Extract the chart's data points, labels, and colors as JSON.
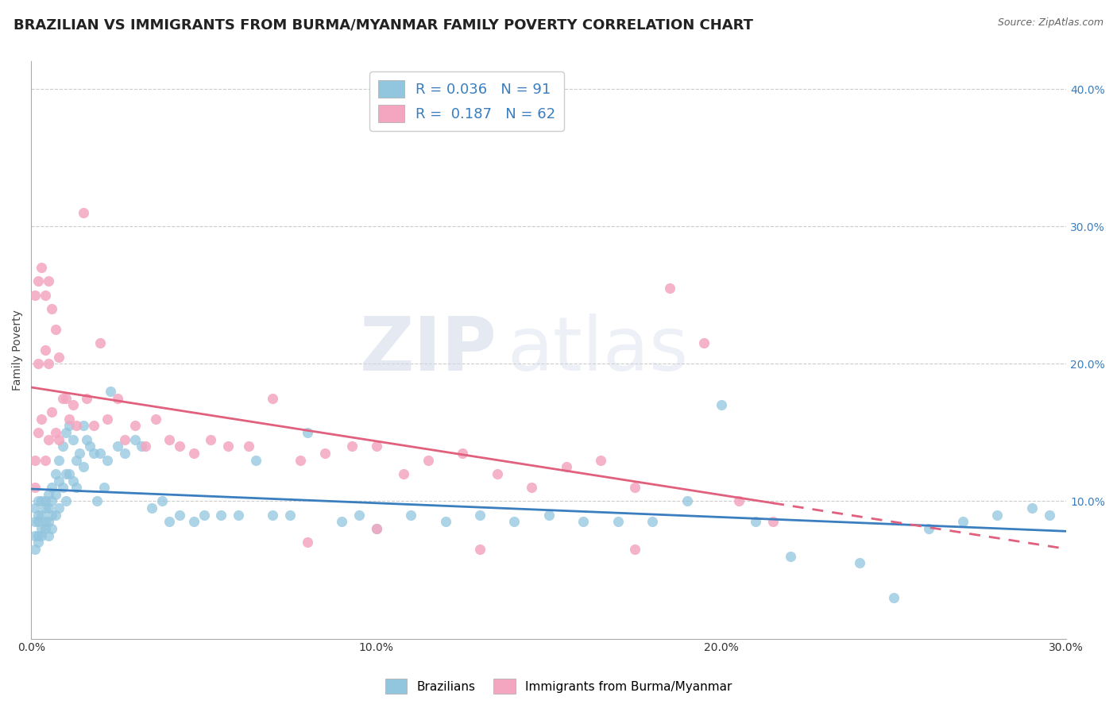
{
  "title": "BRAZILIAN VS IMMIGRANTS FROM BURMA/MYANMAR FAMILY POVERTY CORRELATION CHART",
  "source": "Source: ZipAtlas.com",
  "ylabel_label": "Family Poverty",
  "xlim": [
    0.0,
    0.3
  ],
  "ylim": [
    0.0,
    0.42
  ],
  "yticks": [
    0.1,
    0.2,
    0.3,
    0.4
  ],
  "ytick_labels": [
    "10.0%",
    "20.0%",
    "30.0%",
    "40.0%"
  ],
  "xticks": [
    0.0,
    0.1,
    0.2,
    0.3
  ],
  "xtick_labels": [
    "0.0%",
    "10.0%",
    "20.0%",
    "30.0%"
  ],
  "blue_color": "#92c5de",
  "pink_color": "#f4a6c0",
  "blue_line_color": "#3a7ebf",
  "pink_line_color": "#e0607e",
  "blue_r": 0.036,
  "blue_n": 91,
  "pink_r": 0.187,
  "pink_n": 62,
  "watermark_zip": "ZIP",
  "watermark_atlas": "atlas",
  "legend_label_blue": "Brazilians",
  "legend_label_pink": "Immigrants from Burma/Myanmar",
  "title_fontsize": 13,
  "axis_label_fontsize": 10,
  "tick_fontsize": 10,
  "blue_x": [
    0.001,
    0.001,
    0.001,
    0.001,
    0.002,
    0.002,
    0.002,
    0.002,
    0.002,
    0.003,
    0.003,
    0.003,
    0.003,
    0.004,
    0.004,
    0.004,
    0.004,
    0.005,
    0.005,
    0.005,
    0.005,
    0.006,
    0.006,
    0.006,
    0.006,
    0.007,
    0.007,
    0.007,
    0.008,
    0.008,
    0.008,
    0.009,
    0.009,
    0.01,
    0.01,
    0.01,
    0.011,
    0.011,
    0.012,
    0.012,
    0.013,
    0.013,
    0.014,
    0.015,
    0.015,
    0.016,
    0.017,
    0.018,
    0.019,
    0.02,
    0.021,
    0.022,
    0.023,
    0.025,
    0.027,
    0.03,
    0.032,
    0.035,
    0.038,
    0.04,
    0.043,
    0.047,
    0.05,
    0.055,
    0.06,
    0.065,
    0.07,
    0.075,
    0.08,
    0.09,
    0.095,
    0.1,
    0.11,
    0.12,
    0.13,
    0.14,
    0.15,
    0.16,
    0.17,
    0.18,
    0.19,
    0.2,
    0.21,
    0.22,
    0.24,
    0.25,
    0.26,
    0.27,
    0.28,
    0.29,
    0.295
  ],
  "blue_y": [
    0.095,
    0.085,
    0.075,
    0.065,
    0.1,
    0.09,
    0.085,
    0.075,
    0.07,
    0.1,
    0.09,
    0.08,
    0.075,
    0.1,
    0.095,
    0.085,
    0.08,
    0.105,
    0.095,
    0.085,
    0.075,
    0.11,
    0.1,
    0.09,
    0.08,
    0.12,
    0.105,
    0.09,
    0.13,
    0.115,
    0.095,
    0.14,
    0.11,
    0.15,
    0.12,
    0.1,
    0.155,
    0.12,
    0.145,
    0.115,
    0.13,
    0.11,
    0.135,
    0.155,
    0.125,
    0.145,
    0.14,
    0.135,
    0.1,
    0.135,
    0.11,
    0.13,
    0.18,
    0.14,
    0.135,
    0.145,
    0.14,
    0.095,
    0.1,
    0.085,
    0.09,
    0.085,
    0.09,
    0.09,
    0.09,
    0.13,
    0.09,
    0.09,
    0.15,
    0.085,
    0.09,
    0.08,
    0.09,
    0.085,
    0.09,
    0.085,
    0.09,
    0.085,
    0.085,
    0.085,
    0.1,
    0.17,
    0.085,
    0.06,
    0.055,
    0.03,
    0.08,
    0.085,
    0.09,
    0.095,
    0.09
  ],
  "pink_x": [
    0.001,
    0.001,
    0.001,
    0.002,
    0.002,
    0.002,
    0.003,
    0.003,
    0.004,
    0.004,
    0.004,
    0.005,
    0.005,
    0.005,
    0.006,
    0.006,
    0.007,
    0.007,
    0.008,
    0.008,
    0.009,
    0.01,
    0.011,
    0.012,
    0.013,
    0.015,
    0.016,
    0.018,
    0.02,
    0.022,
    0.025,
    0.027,
    0.03,
    0.033,
    0.036,
    0.04,
    0.043,
    0.047,
    0.052,
    0.057,
    0.063,
    0.07,
    0.078,
    0.085,
    0.093,
    0.1,
    0.108,
    0.115,
    0.125,
    0.135,
    0.145,
    0.155,
    0.165,
    0.175,
    0.185,
    0.195,
    0.205,
    0.215,
    0.175,
    0.13,
    0.1,
    0.08
  ],
  "pink_y": [
    0.25,
    0.13,
    0.11,
    0.26,
    0.2,
    0.15,
    0.27,
    0.16,
    0.25,
    0.21,
    0.13,
    0.26,
    0.2,
    0.145,
    0.24,
    0.165,
    0.225,
    0.15,
    0.205,
    0.145,
    0.175,
    0.175,
    0.16,
    0.17,
    0.155,
    0.31,
    0.175,
    0.155,
    0.215,
    0.16,
    0.175,
    0.145,
    0.155,
    0.14,
    0.16,
    0.145,
    0.14,
    0.135,
    0.145,
    0.14,
    0.14,
    0.175,
    0.13,
    0.135,
    0.14,
    0.14,
    0.12,
    0.13,
    0.135,
    0.12,
    0.11,
    0.125,
    0.13,
    0.11,
    0.255,
    0.215,
    0.1,
    0.085,
    0.065,
    0.065,
    0.08,
    0.07
  ]
}
